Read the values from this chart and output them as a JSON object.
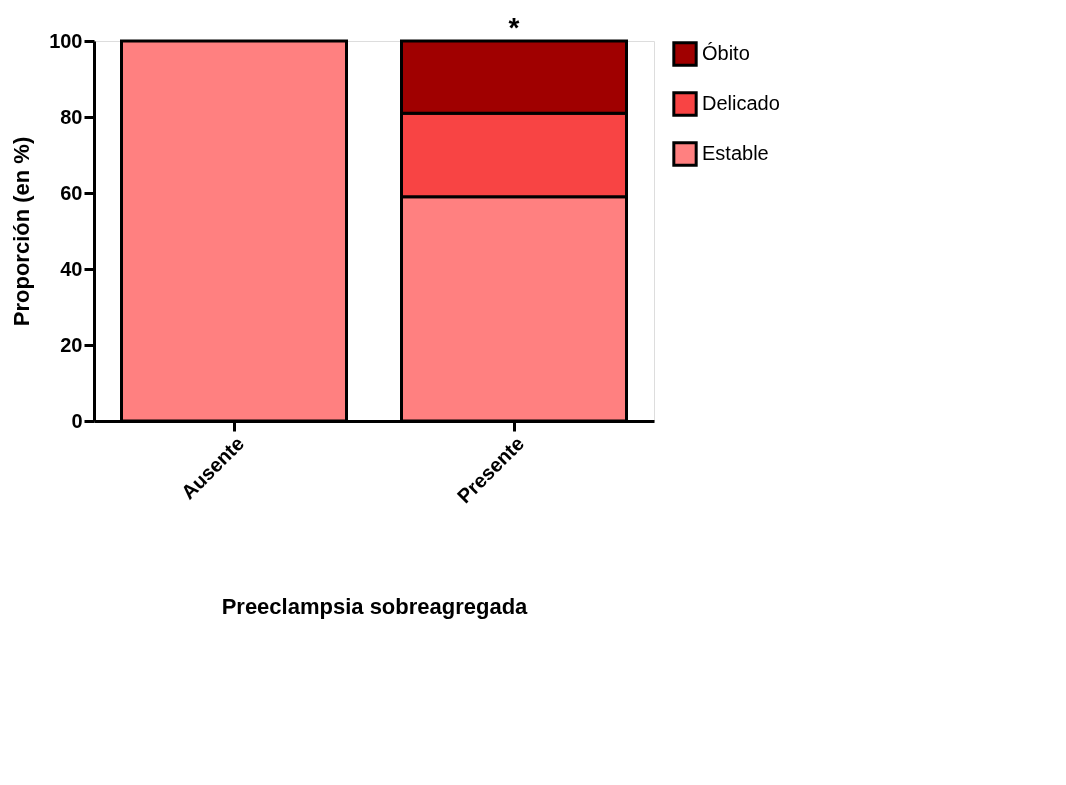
{
  "chart_data": {
    "type": "bar",
    "stacked": true,
    "xlabel": "Preeclampsia sobreagregada",
    "ylabel": "Proporción (en %)",
    "categories": [
      "Ausente",
      "Presente"
    ],
    "series": [
      {
        "name": "Estable",
        "color": "#ff8080",
        "values": [
          100,
          59
        ]
      },
      {
        "name": "Delicado",
        "color": "#f84444",
        "values": [
          null,
          22
        ]
      },
      {
        "name": "Óbito",
        "color": "#a00000",
        "values": [
          null,
          19
        ]
      }
    ],
    "ylim": [
      0,
      100
    ],
    "yticks": [
      0,
      20,
      40,
      60,
      80,
      100
    ],
    "grid": false,
    "legend": "top right",
    "annotations": [
      {
        "text": "*",
        "x": "Presente",
        "y": 100
      }
    ]
  }
}
